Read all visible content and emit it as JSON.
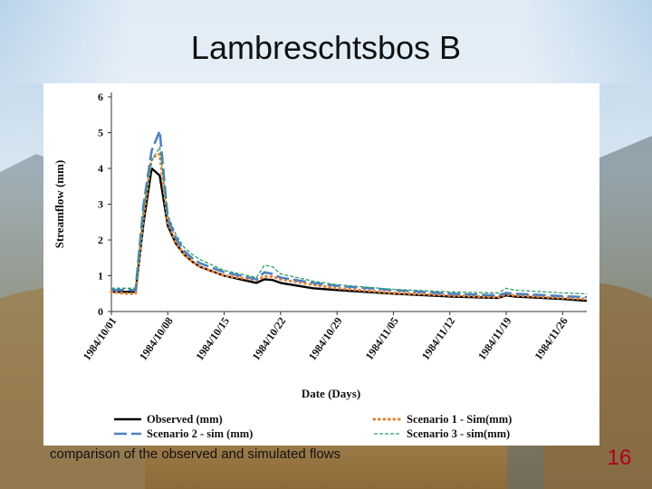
{
  "slide": {
    "title": "Lambreschtsbos B",
    "caption": "comparison of the observed and simulated flows",
    "slide_number": "16"
  },
  "colors": {
    "observed": "#000000",
    "scenario1": "#e8833a",
    "scenario2": "#4f81bd",
    "scenario3": "#2e9e6e",
    "slide_number": "#b0001e"
  },
  "chart_data": {
    "type": "line",
    "title": "",
    "xlabel": "Date (Days)",
    "ylabel": "Streamflow (mm)",
    "ylim": [
      0,
      6
    ],
    "yticks": [
      "0",
      "1",
      "2",
      "3",
      "4",
      "5",
      "6"
    ],
    "xticks": [
      "1984/10/01",
      "1984/10/08",
      "1984/10/15",
      "1984/10/22",
      "1984/10/29",
      "1984/11/05",
      "1984/11/12",
      "1984/11/19",
      "1984/11/26"
    ],
    "x_start": "1984/10/01",
    "x_end": "1984/11/29",
    "grid": false,
    "legend_position": "bottom",
    "series": [
      {
        "name": "Observed (mm)",
        "style": "solid",
        "points": [
          [
            "1984/10/01",
            0.55
          ],
          [
            "1984/10/02",
            0.55
          ],
          [
            "1984/10/03",
            0.55
          ],
          [
            "1984/10/04",
            0.55
          ],
          [
            "1984/10/05",
            2.5
          ],
          [
            "1984/10/06",
            4.0
          ],
          [
            "1984/10/07",
            3.8
          ],
          [
            "1984/10/08",
            2.4
          ],
          [
            "1984/10/09",
            1.9
          ],
          [
            "1984/10/10",
            1.6
          ],
          [
            "1984/10/11",
            1.4
          ],
          [
            "1984/10/12",
            1.25
          ],
          [
            "1984/10/15",
            1.0
          ],
          [
            "1984/10/19",
            0.8
          ],
          [
            "1984/10/20",
            0.9
          ],
          [
            "1984/10/21",
            0.88
          ],
          [
            "1984/10/22",
            0.8
          ],
          [
            "1984/10/26",
            0.65
          ],
          [
            "1984/10/29",
            0.6
          ],
          [
            "1984/11/05",
            0.5
          ],
          [
            "1984/11/12",
            0.42
          ],
          [
            "1984/11/18",
            0.38
          ],
          [
            "1984/11/19",
            0.45
          ],
          [
            "1984/11/20",
            0.42
          ],
          [
            "1984/11/26",
            0.35
          ],
          [
            "1984/11/29",
            0.3
          ]
        ]
      },
      {
        "name": "Scenario 1 - Sim(mm)",
        "style": "dotted",
        "points": [
          [
            "1984/10/01",
            0.55
          ],
          [
            "1984/10/02",
            0.52
          ],
          [
            "1984/10/03",
            0.5
          ],
          [
            "1984/10/04",
            0.5
          ],
          [
            "1984/10/05",
            2.7
          ],
          [
            "1984/10/06",
            4.3
          ],
          [
            "1984/10/07",
            4.4
          ],
          [
            "1984/10/08",
            2.5
          ],
          [
            "1984/10/09",
            1.95
          ],
          [
            "1984/10/10",
            1.6
          ],
          [
            "1984/10/11",
            1.4
          ],
          [
            "1984/10/12",
            1.25
          ],
          [
            "1984/10/15",
            1.0
          ],
          [
            "1984/10/19",
            0.88
          ],
          [
            "1984/10/20",
            0.98
          ],
          [
            "1984/10/21",
            0.98
          ],
          [
            "1984/10/22",
            0.9
          ],
          [
            "1984/10/26",
            0.75
          ],
          [
            "1984/10/29",
            0.65
          ],
          [
            "1984/11/05",
            0.52
          ],
          [
            "1984/11/12",
            0.45
          ],
          [
            "1984/11/18",
            0.4
          ],
          [
            "1984/11/19",
            0.48
          ],
          [
            "1984/11/20",
            0.45
          ],
          [
            "1984/11/26",
            0.38
          ],
          [
            "1984/11/29",
            0.35
          ]
        ]
      },
      {
        "name": "Scenario 2 - sim (mm)",
        "style": "dashed",
        "points": [
          [
            "1984/10/01",
            0.6
          ],
          [
            "1984/10/02",
            0.6
          ],
          [
            "1984/10/03",
            0.6
          ],
          [
            "1984/10/04",
            0.6
          ],
          [
            "1984/10/05",
            3.0
          ],
          [
            "1984/10/06",
            4.5
          ],
          [
            "1984/10/07",
            5.05
          ],
          [
            "1984/10/08",
            2.6
          ],
          [
            "1984/10/09",
            2.05
          ],
          [
            "1984/10/10",
            1.7
          ],
          [
            "1984/10/11",
            1.5
          ],
          [
            "1984/10/12",
            1.35
          ],
          [
            "1984/10/15",
            1.1
          ],
          [
            "1984/10/19",
            0.9
          ],
          [
            "1984/10/20",
            1.1
          ],
          [
            "1984/10/21",
            1.05
          ],
          [
            "1984/10/22",
            0.95
          ],
          [
            "1984/10/26",
            0.8
          ],
          [
            "1984/10/29",
            0.72
          ],
          [
            "1984/11/05",
            0.6
          ],
          [
            "1984/11/12",
            0.5
          ],
          [
            "1984/11/18",
            0.45
          ],
          [
            "1984/11/19",
            0.52
          ],
          [
            "1984/11/20",
            0.5
          ],
          [
            "1984/11/26",
            0.43
          ],
          [
            "1984/11/29",
            0.4
          ]
        ]
      },
      {
        "name": "Scenario 3 - sim(mm)",
        "style": "dash-thin",
        "points": [
          [
            "1984/10/01",
            0.65
          ],
          [
            "1984/10/02",
            0.65
          ],
          [
            "1984/10/03",
            0.65
          ],
          [
            "1984/10/04",
            0.65
          ],
          [
            "1984/10/05",
            2.9
          ],
          [
            "1984/10/06",
            4.2
          ],
          [
            "1984/10/07",
            4.6
          ],
          [
            "1984/10/08",
            2.7
          ],
          [
            "1984/10/09",
            2.15
          ],
          [
            "1984/10/10",
            1.8
          ],
          [
            "1984/10/11",
            1.6
          ],
          [
            "1984/10/12",
            1.45
          ],
          [
            "1984/10/15",
            1.15
          ],
          [
            "1984/10/19",
            0.95
          ],
          [
            "1984/10/20",
            1.3
          ],
          [
            "1984/10/21",
            1.25
          ],
          [
            "1984/10/22",
            1.05
          ],
          [
            "1984/10/26",
            0.85
          ],
          [
            "1984/10/29",
            0.75
          ],
          [
            "1984/11/05",
            0.62
          ],
          [
            "1984/11/12",
            0.55
          ],
          [
            "1984/11/18",
            0.52
          ],
          [
            "1984/11/19",
            0.65
          ],
          [
            "1984/11/20",
            0.6
          ],
          [
            "1984/11/26",
            0.52
          ],
          [
            "1984/11/29",
            0.5
          ]
        ]
      }
    ]
  }
}
